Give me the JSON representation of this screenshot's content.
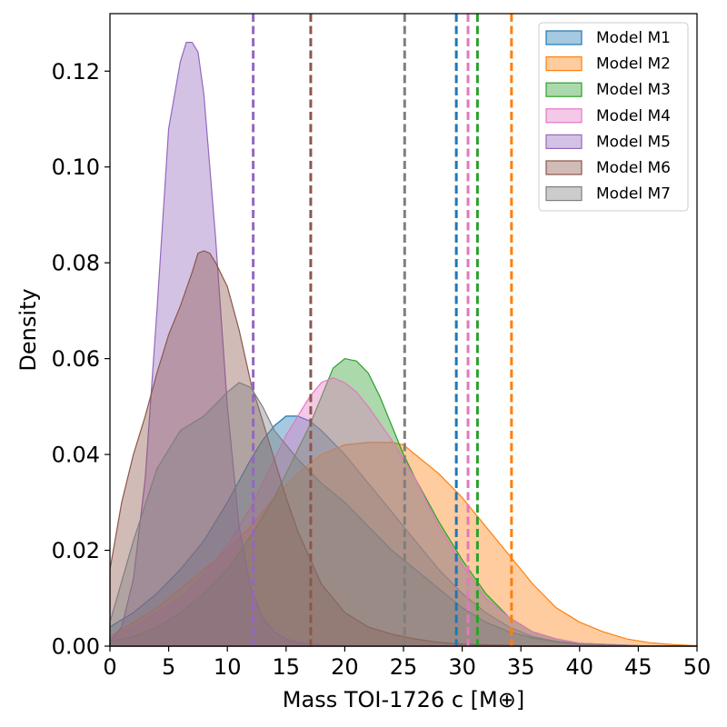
{
  "chart_data": {
    "type": "area",
    "title": "",
    "xlabel": "Mass TOI-1726 c [M⊕]",
    "ylabel": "Density",
    "xlim": [
      0,
      50
    ],
    "ylim": [
      0,
      0.132
    ],
    "grid": false,
    "legend_position": "top-right",
    "x_ticks": [
      0,
      5,
      10,
      15,
      20,
      25,
      30,
      35,
      40,
      45,
      50
    ],
    "x_tick_labels": [
      "0",
      "5",
      "10",
      "15",
      "20",
      "25",
      "30",
      "35",
      "40",
      "45",
      "50"
    ],
    "y_ticks": [
      0,
      0.02,
      0.04,
      0.06,
      0.08,
      0.1,
      0.12
    ],
    "y_tick_labels": [
      "0.00",
      "0.02",
      "0.04",
      "0.06",
      "0.08",
      "0.10",
      "0.12"
    ],
    "series": [
      {
        "name": "Model M1",
        "color": "#1f77b4",
        "vline": 29.5,
        "x": [
          0,
          2,
          4,
          6,
          8,
          10,
          12,
          13,
          14,
          15,
          16,
          17,
          18,
          20,
          22,
          24,
          26,
          28,
          30,
          32,
          34,
          36,
          38,
          40,
          45,
          50
        ],
        "y": [
          0.004,
          0.007,
          0.011,
          0.016,
          0.022,
          0.03,
          0.039,
          0.043,
          0.046,
          0.048,
          0.048,
          0.047,
          0.045,
          0.04,
          0.034,
          0.028,
          0.022,
          0.016,
          0.011,
          0.007,
          0.004,
          0.002,
          0.001,
          0.0005,
          0,
          0
        ]
      },
      {
        "name": "Model M2",
        "color": "#ff7f0e",
        "vline": 34.2,
        "x": [
          0,
          2,
          4,
          6,
          8,
          10,
          12,
          14,
          16,
          18,
          20,
          22,
          24,
          25,
          26,
          28,
          30,
          32,
          34,
          36,
          38,
          40,
          42,
          44,
          46,
          48,
          50
        ],
        "y": [
          0.002,
          0.005,
          0.008,
          0.012,
          0.016,
          0.02,
          0.025,
          0.031,
          0.036,
          0.04,
          0.042,
          0.0425,
          0.0425,
          0.042,
          0.04,
          0.036,
          0.031,
          0.025,
          0.019,
          0.013,
          0.008,
          0.005,
          0.003,
          0.0015,
          0.0007,
          0.0003,
          0.0001
        ]
      },
      {
        "name": "Model M3",
        "color": "#2ca02c",
        "vline": 31.3,
        "x": [
          0,
          2,
          4,
          6,
          8,
          10,
          12,
          14,
          16,
          17,
          18,
          19,
          20,
          21,
          22,
          23,
          24,
          25,
          26,
          28,
          30,
          32,
          34,
          36,
          38,
          40,
          45,
          50
        ],
        "y": [
          0.001,
          0.002,
          0.004,
          0.007,
          0.011,
          0.016,
          0.023,
          0.031,
          0.041,
          0.046,
          0.052,
          0.058,
          0.06,
          0.0595,
          0.057,
          0.052,
          0.046,
          0.04,
          0.035,
          0.026,
          0.018,
          0.011,
          0.006,
          0.003,
          0.0015,
          0.0006,
          0.0001,
          0
        ]
      },
      {
        "name": "Model M4",
        "color": "#e377c2",
        "vline": 30.5,
        "x": [
          0,
          2,
          4,
          6,
          8,
          10,
          12,
          14,
          15,
          16,
          17,
          18,
          19,
          20,
          21,
          22,
          24,
          26,
          28,
          30,
          32,
          34,
          36,
          38,
          40,
          45,
          50
        ],
        "y": [
          0.002,
          0.004,
          0.007,
          0.01,
          0.015,
          0.021,
          0.029,
          0.039,
          0.044,
          0.048,
          0.052,
          0.055,
          0.056,
          0.055,
          0.053,
          0.05,
          0.043,
          0.035,
          0.025,
          0.017,
          0.01,
          0.006,
          0.003,
          0.0015,
          0.0006,
          0.0001,
          0
        ]
      },
      {
        "name": "Model M5",
        "color": "#9467bd",
        "vline": 12.2,
        "x": [
          0,
          1,
          2,
          3,
          4,
          5,
          6,
          6.5,
          7,
          7.5,
          8,
          9,
          10,
          11,
          12,
          13,
          14,
          15,
          16,
          18,
          20,
          25,
          30,
          40,
          50
        ],
        "y": [
          0.001,
          0.004,
          0.014,
          0.035,
          0.07,
          0.108,
          0.122,
          0.126,
          0.126,
          0.124,
          0.115,
          0.085,
          0.05,
          0.025,
          0.012,
          0.006,
          0.003,
          0.0015,
          0.0008,
          0.0002,
          0.0001,
          0,
          0,
          0,
          0
        ]
      },
      {
        "name": "Model M6",
        "color": "#8c564b",
        "vline": 17.1,
        "x": [
          0,
          1,
          2,
          3,
          4,
          5,
          6,
          7,
          7.5,
          8,
          8.5,
          9,
          10,
          11,
          12,
          13,
          14,
          15,
          16,
          18,
          20,
          22,
          24,
          26,
          28,
          30,
          35,
          40,
          50
        ],
        "y": [
          0.016,
          0.03,
          0.04,
          0.048,
          0.057,
          0.065,
          0.071,
          0.078,
          0.082,
          0.0825,
          0.082,
          0.08,
          0.075,
          0.066,
          0.055,
          0.047,
          0.039,
          0.031,
          0.024,
          0.013,
          0.007,
          0.004,
          0.0025,
          0.0015,
          0.0008,
          0.0004,
          0.0001,
          0,
          0
        ]
      },
      {
        "name": "Model M7",
        "color": "#7f7f7f",
        "vline": 25.1,
        "x": [
          0,
          2,
          4,
          6,
          8,
          10,
          11,
          12,
          13,
          14,
          16,
          18,
          20,
          22,
          24,
          26,
          28,
          30,
          32,
          34,
          36,
          38,
          40,
          45,
          50
        ],
        "y": [
          0.005,
          0.022,
          0.037,
          0.045,
          0.048,
          0.053,
          0.055,
          0.054,
          0.05,
          0.045,
          0.039,
          0.034,
          0.03,
          0.025,
          0.02,
          0.016,
          0.012,
          0.008,
          0.005,
          0.003,
          0.0017,
          0.0009,
          0.0004,
          0.0001,
          0
        ]
      }
    ]
  }
}
